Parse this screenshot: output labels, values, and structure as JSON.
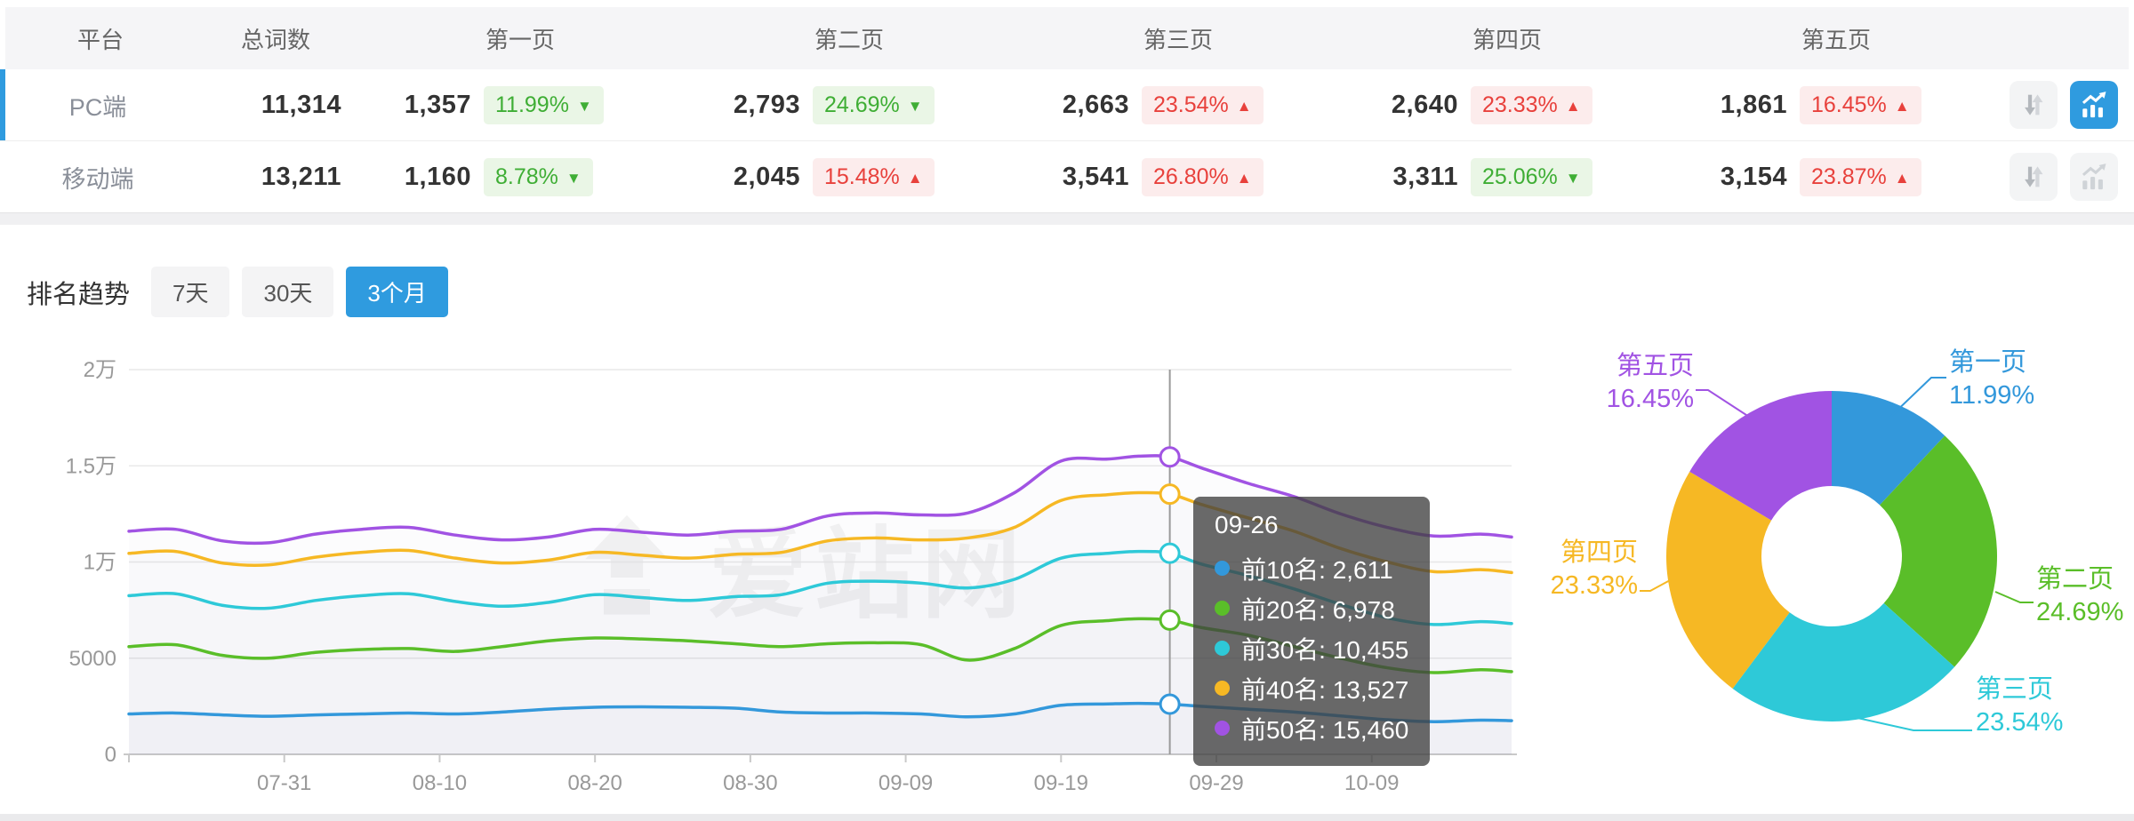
{
  "colors": {
    "accent": "#2f9bdf",
    "up_red": "#e8413c",
    "down_green": "#3fae35",
    "series": [
      "#3398db",
      "#5abe29",
      "#2ec9d8",
      "#f6b824",
      "#a153e3"
    ]
  },
  "icons": {
    "sort": "sort-arrows-icon",
    "chart": "line-chart-icon"
  },
  "table": {
    "columns": [
      "平台",
      "总词数",
      "第一页",
      "第二页",
      "第三页",
      "第四页",
      "第五页"
    ],
    "rows": [
      {
        "platform": "PC端",
        "selected": true,
        "total": "11,314",
        "pages": [
          {
            "count": "1,357",
            "pct": "11.99%",
            "dir": "down"
          },
          {
            "count": "2,793",
            "pct": "24.69%",
            "dir": "down"
          },
          {
            "count": "2,663",
            "pct": "23.54%",
            "dir": "up"
          },
          {
            "count": "2,640",
            "pct": "23.33%",
            "dir": "up"
          },
          {
            "count": "1,861",
            "pct": "16.45%",
            "dir": "up"
          }
        ],
        "chart_active": true
      },
      {
        "platform": "移动端",
        "selected": false,
        "total": "13,211",
        "pages": [
          {
            "count": "1,160",
            "pct": "8.78%",
            "dir": "down"
          },
          {
            "count": "2,045",
            "pct": "15.48%",
            "dir": "up"
          },
          {
            "count": "3,541",
            "pct": "26.80%",
            "dir": "up"
          },
          {
            "count": "3,311",
            "pct": "25.06%",
            "dir": "down"
          },
          {
            "count": "3,154",
            "pct": "23.87%",
            "dir": "up"
          }
        ],
        "chart_active": false
      }
    ]
  },
  "trend": {
    "title": "排名趋势",
    "tabs": [
      {
        "label": "7天",
        "active": false
      },
      {
        "label": "30天",
        "active": false
      },
      {
        "label": "3个月",
        "active": true
      }
    ]
  },
  "watermark": "爱站网",
  "chart_data": [
    {
      "type": "line",
      "title": "排名趋势(3个月)",
      "x": [
        "07-21",
        "07-24",
        "07-27",
        "07-30",
        "08-02",
        "08-05",
        "08-08",
        "08-11",
        "08-14",
        "08-17",
        "08-20",
        "08-23",
        "08-26",
        "08-29",
        "09-01",
        "09-04",
        "09-07",
        "09-10",
        "09-13",
        "09-16",
        "09-19",
        "09-22",
        "09-24",
        "09-26",
        "09-28",
        "10-01",
        "10-04",
        "10-07",
        "10-10",
        "10-13",
        "10-16",
        "10-18"
      ],
      "series": [
        {
          "name": "前10名",
          "color": "#3398db",
          "values": [
            2100,
            2150,
            2050,
            1980,
            2050,
            2100,
            2150,
            2100,
            2200,
            2350,
            2450,
            2470,
            2450,
            2400,
            2200,
            2150,
            2150,
            2100,
            1950,
            2100,
            2550,
            2620,
            2650,
            2611,
            2500,
            2350,
            2200,
            2000,
            1800,
            1700,
            1780,
            1750
          ]
        },
        {
          "name": "前20名",
          "color": "#5abe29",
          "values": [
            5600,
            5700,
            5150,
            5000,
            5300,
            5450,
            5500,
            5350,
            5600,
            5900,
            6050,
            6000,
            5900,
            5750,
            5600,
            5750,
            5800,
            5700,
            4900,
            5500,
            6700,
            6950,
            7050,
            6978,
            6600,
            6200,
            5600,
            5000,
            4500,
            4250,
            4400,
            4300
          ]
        },
        {
          "name": "前30名",
          "color": "#2ec9d8",
          "values": [
            8250,
            8350,
            7750,
            7600,
            8000,
            8250,
            8350,
            7950,
            7700,
            7900,
            8300,
            8150,
            8000,
            8200,
            8300,
            8900,
            9000,
            8900,
            8650,
            9100,
            10200,
            10450,
            10550,
            10455,
            9900,
            9300,
            8600,
            7800,
            7100,
            6750,
            6900,
            6800
          ]
        },
        {
          "name": "前40名",
          "color": "#f6b824",
          "values": [
            10450,
            10550,
            9950,
            9850,
            10250,
            10500,
            10600,
            10200,
            9950,
            10100,
            10500,
            10350,
            10200,
            10400,
            10500,
            11100,
            11250,
            11150,
            11250,
            11800,
            13200,
            13500,
            13600,
            13527,
            13000,
            12300,
            11600,
            10700,
            10000,
            9500,
            9600,
            9450
          ]
        },
        {
          "name": "前50名",
          "color": "#a153e3",
          "values": [
            11600,
            11700,
            11100,
            11000,
            11450,
            11700,
            11800,
            11400,
            11150,
            11300,
            11700,
            11550,
            11400,
            11600,
            11700,
            12400,
            12550,
            12450,
            12550,
            13600,
            15250,
            15350,
            15500,
            15460,
            14900,
            14100,
            13400,
            12500,
            11800,
            11350,
            11450,
            11300
          ]
        }
      ],
      "ylim": [
        0,
        20000
      ],
      "yticks": [
        "0",
        "5000",
        "1万",
        "1.5万",
        "2万"
      ],
      "xticks": [
        "07-31",
        "08-10",
        "08-20",
        "08-30",
        "09-09",
        "09-19",
        "09-29",
        "10-09"
      ],
      "grid": true,
      "legend": "none",
      "tooltip": {
        "date": "09-26",
        "entries": [
          {
            "name": "前10名",
            "value": "2,611"
          },
          {
            "name": "前20名",
            "value": "6,978"
          },
          {
            "name": "前30名",
            "value": "10,455"
          },
          {
            "name": "前40名",
            "value": "13,527"
          },
          {
            "name": "前50名",
            "value": "15,460"
          }
        ]
      }
    },
    {
      "type": "pie",
      "title": "页面分布",
      "slices": [
        {
          "label": "第一页",
          "pct": 11.99,
          "color": "#3398db"
        },
        {
          "label": "第二页",
          "pct": 24.69,
          "color": "#5abe29"
        },
        {
          "label": "第三页",
          "pct": 23.54,
          "color": "#2ec9d8"
        },
        {
          "label": "第四页",
          "pct": 23.33,
          "color": "#f6b824"
        },
        {
          "label": "第五页",
          "pct": 16.45,
          "color": "#a153e3"
        }
      ]
    }
  ]
}
